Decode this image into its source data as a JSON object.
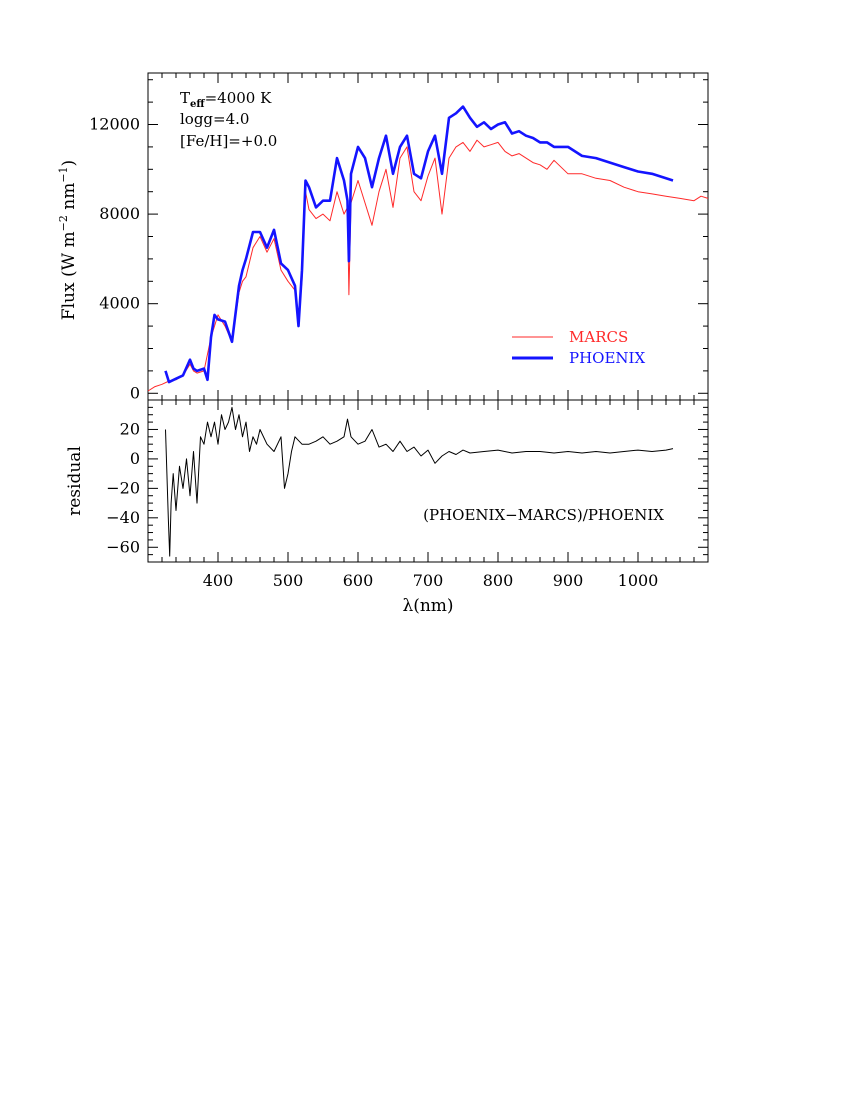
{
  "chart_data": [
    {
      "type": "line",
      "panel": "flux",
      "ylabel_parts": [
        "Flux (W m",
        "−2",
        " nm",
        "−1",
        ")"
      ],
      "ylim": [
        -300,
        14300
      ],
      "xlim": [
        300,
        1100
      ],
      "y_ticks": [
        "0",
        "4000",
        "8000",
        "12000"
      ],
      "y_tick_values": [
        0,
        4000,
        8000,
        12000
      ],
      "annotation": {
        "teff_base": "T",
        "teff_sub": "eff",
        "teff_rest": "=4000 K",
        "logg": "logg=4.0",
        "feh": "[Fe/H]=+0.0"
      },
      "legend_position": "bottom-right",
      "series": [
        {
          "name": "MARCS",
          "color": "#ff2a2a",
          "x": [
            300,
            310,
            320,
            330,
            340,
            350,
            360,
            365,
            370,
            380,
            390,
            395,
            400,
            410,
            420,
            430,
            435,
            440,
            450,
            460,
            470,
            480,
            490,
            500,
            510,
            515,
            520,
            525,
            530,
            540,
            550,
            560,
            570,
            580,
            585,
            587,
            590,
            600,
            610,
            620,
            630,
            640,
            650,
            660,
            670,
            680,
            690,
            700,
            710,
            720,
            730,
            740,
            750,
            760,
            770,
            780,
            790,
            800,
            810,
            820,
            830,
            840,
            850,
            860,
            870,
            880,
            900,
            920,
            940,
            960,
            980,
            1000,
            1020,
            1040,
            1060,
            1080,
            1090,
            1100
          ],
          "y": [
            100,
            300,
            400,
            550,
            600,
            800,
            1300,
            1000,
            900,
            1000,
            2500,
            3000,
            3500,
            3000,
            2300,
            4500,
            5000,
            5200,
            6500,
            7000,
            6300,
            6900,
            5500,
            5000,
            4600,
            3500,
            5000,
            9000,
            8200,
            7800,
            8000,
            7700,
            9000,
            8000,
            8300,
            4400,
            8500,
            9500,
            8500,
            7500,
            9000,
            10000,
            8300,
            10500,
            11000,
            9000,
            8600,
            9700,
            10500,
            8000,
            10500,
            11000,
            11200,
            10800,
            11300,
            11000,
            11100,
            11200,
            10800,
            10600,
            10700,
            10500,
            10300,
            10200,
            10000,
            10400,
            9800,
            9800,
            9600,
            9500,
            9200,
            9000,
            8900,
            8800,
            8700,
            8600,
            8800,
            8700
          ]
        },
        {
          "name": "PHOENIX",
          "color": "#1414ff",
          "x": [
            325,
            330,
            340,
            350,
            360,
            365,
            370,
            380,
            385,
            390,
            395,
            400,
            410,
            420,
            430,
            435,
            440,
            450,
            460,
            470,
            480,
            490,
            500,
            510,
            515,
            520,
            525,
            530,
            540,
            550,
            560,
            570,
            580,
            585,
            587,
            590,
            600,
            610,
            620,
            630,
            640,
            650,
            660,
            670,
            680,
            690,
            700,
            710,
            720,
            730,
            740,
            750,
            760,
            770,
            780,
            790,
            800,
            810,
            820,
            830,
            840,
            850,
            860,
            870,
            880,
            900,
            920,
            940,
            960,
            980,
            1000,
            1020,
            1040,
            1050
          ],
          "y": [
            1000,
            500,
            650,
            800,
            1500,
            1100,
            1000,
            1100,
            600,
            2500,
            3500,
            3300,
            3200,
            2300,
            4800,
            5500,
            6000,
            7200,
            7200,
            6500,
            7300,
            5800,
            5500,
            4800,
            3000,
            5500,
            9500,
            9200,
            8300,
            8600,
            8600,
            10500,
            9500,
            8600,
            5900,
            9800,
            11000,
            10500,
            9200,
            10500,
            11500,
            9800,
            11000,
            11500,
            9800,
            9600,
            10800,
            11500,
            9800,
            12300,
            12500,
            12800,
            12300,
            11900,
            12100,
            11800,
            12000,
            12100,
            11600,
            11700,
            11500,
            11400,
            11200,
            11200,
            11000,
            11000,
            10600,
            10500,
            10300,
            10100,
            9900,
            9800,
            9600,
            9500
          ]
        }
      ]
    },
    {
      "type": "line",
      "panel": "residual",
      "ylabel": "residual",
      "ylim": [
        -70,
        40
      ],
      "xlim": [
        300,
        1100
      ],
      "y_ticks": [
        "−60",
        "−40",
        "−20",
        "0",
        "20"
      ],
      "y_tick_values": [
        -60,
        -40,
        -20,
        0,
        20
      ],
      "x_ticks": [
        "400",
        "500",
        "600",
        "700",
        "800",
        "900",
        "1000"
      ],
      "x_tick_values": [
        400,
        500,
        600,
        700,
        800,
        900,
        1000
      ],
      "xlabel": "λ(nm)",
      "annotation": "(PHOENIX−MARCS)/PHOENIX",
      "series": [
        {
          "color": "#000000",
          "x": [
            325,
            327,
            329,
            331,
            333,
            336,
            340,
            345,
            350,
            355,
            360,
            365,
            370,
            375,
            380,
            385,
            390,
            395,
            400,
            405,
            410,
            415,
            420,
            425,
            430,
            435,
            440,
            445,
            450,
            455,
            460,
            470,
            480,
            490,
            495,
            500,
            505,
            510,
            520,
            530,
            540,
            550,
            560,
            570,
            580,
            585,
            590,
            600,
            610,
            620,
            630,
            640,
            650,
            660,
            670,
            680,
            690,
            700,
            710,
            720,
            730,
            740,
            750,
            760,
            780,
            800,
            820,
            840,
            860,
            880,
            900,
            920,
            940,
            960,
            980,
            1000,
            1020,
            1040,
            1050
          ],
          "y": [
            20,
            -10,
            -40,
            -66,
            -30,
            -10,
            -35,
            -5,
            -20,
            0,
            -25,
            5,
            -30,
            15,
            10,
            25,
            15,
            25,
            10,
            30,
            20,
            25,
            35,
            20,
            30,
            15,
            25,
            5,
            15,
            10,
            20,
            10,
            5,
            15,
            -20,
            -10,
            5,
            15,
            10,
            10,
            12,
            15,
            10,
            12,
            15,
            27,
            15,
            10,
            12,
            20,
            8,
            10,
            5,
            12,
            5,
            8,
            2,
            6,
            -3,
            2,
            5,
            3,
            6,
            4,
            5,
            6,
            4,
            5,
            5,
            4,
            5,
            4,
            5,
            4,
            5,
            6,
            5,
            6,
            7
          ]
        }
      ]
    }
  ]
}
